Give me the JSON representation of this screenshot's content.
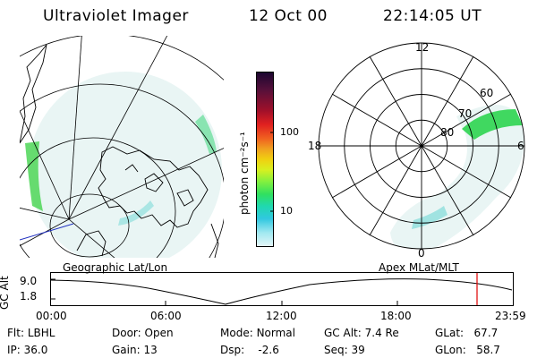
{
  "header": {
    "title": "Ultraviolet Imager",
    "date": "12 Oct 00",
    "time": "22:14:05 UT"
  },
  "colorbar": {
    "unit_label": "photon cm⁻²s⁻¹",
    "ticks": [
      "100",
      "10"
    ],
    "colors": [
      "#1a0630",
      "#55103a",
      "#a0102a",
      "#e02020",
      "#f06020",
      "#f0a020",
      "#f0d010",
      "#d8f020",
      "#80f040",
      "#30e060",
      "#20d8b0",
      "#30c8e0",
      "#a0e8f0",
      "#e6f6f8"
    ]
  },
  "left_map": {
    "caption": "Geographic Lat/Lon"
  },
  "right_map": {
    "caption": "Apex MLat/MLT",
    "mlt_labels": {
      "top": "12",
      "left": "18",
      "right": "6",
      "bottom": "0"
    },
    "lat_labels": [
      "60",
      "70",
      "80"
    ]
  },
  "altitude_plot": {
    "ylabel": "GC Alt",
    "y_ticks": [
      "9.0",
      "1.8"
    ],
    "x_ticks": [
      "00:00",
      "06:00",
      "12:00",
      "18:00",
      "23:59"
    ],
    "marker_color": "#e00000"
  },
  "status": {
    "flt": {
      "label": "Flt:",
      "value": "LBHL"
    },
    "ip": {
      "label": "IP:",
      "value": "36.0"
    },
    "door": {
      "label": "Door:",
      "value": "Open"
    },
    "gain": {
      "label": "Gain:",
      "value": "13"
    },
    "mode": {
      "label": "Mode:",
      "value": "Normal"
    },
    "dsp": {
      "label": "Dsp:",
      "value": "-2.6"
    },
    "gcalt": {
      "label": "GC Alt:",
      "value": "7.4 Re"
    },
    "seq": {
      "label": "Seq:",
      "value": "39"
    },
    "glat": {
      "label": "GLat:",
      "value": "67.7"
    },
    "glon": {
      "label": "GLon:",
      "value": "58.7"
    }
  }
}
